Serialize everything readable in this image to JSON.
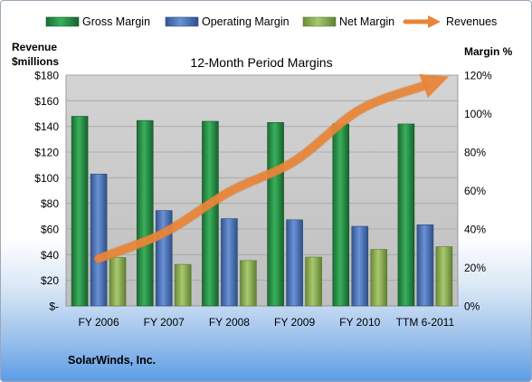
{
  "chart_data": {
    "type": "bar",
    "title": "12-Month Period Margins",
    "company": "SolarWinds, Inc.",
    "left_axis_label_line1": "Revenue",
    "left_axis_label_line2": "$millions",
    "right_axis_label": "Margin %",
    "categories": [
      "FY 2006",
      "FY 2007",
      "FY 2008",
      "FY 2009",
      "FY 2010",
      "TTM 6-2011"
    ],
    "left_ylim": [
      0,
      180
    ],
    "left_ticks": [
      0,
      20,
      40,
      60,
      80,
      100,
      120,
      140,
      160,
      180
    ],
    "left_tick_labels": [
      "$-",
      "$20",
      "$40",
      "$60",
      "$80",
      "$100",
      "$120",
      "$140",
      "$160",
      "$180"
    ],
    "right_ylim": [
      0,
      120
    ],
    "right_ticks": [
      0,
      20,
      40,
      60,
      80,
      100,
      120
    ],
    "right_tick_labels": [
      "0%",
      "20%",
      "40%",
      "60%",
      "80%",
      "100%",
      "120%"
    ],
    "legend_placement": "top",
    "series": [
      {
        "name": "Gross Margin",
        "kind": "bar",
        "axis": "right",
        "color": "#2f9a4f",
        "values": [
          98.6,
          96.4,
          96.0,
          95.4,
          94.6,
          94.6
        ]
      },
      {
        "name": "Operating Margin",
        "kind": "bar",
        "axis": "right",
        "color": "#4f79c0",
        "values": [
          68.6,
          49.6,
          45.4,
          44.8,
          41.4,
          42.2
        ]
      },
      {
        "name": "Net Margin",
        "kind": "bar",
        "axis": "right",
        "color": "#93b55d",
        "values": [
          25.2,
          21.6,
          23.6,
          25.4,
          29.4,
          30.8
        ]
      },
      {
        "name": "Revenues",
        "kind": "line",
        "axis": "left",
        "color": "#e8853a",
        "values": [
          37,
          57,
          89,
          113,
          153,
          172
        ]
      }
    ]
  }
}
